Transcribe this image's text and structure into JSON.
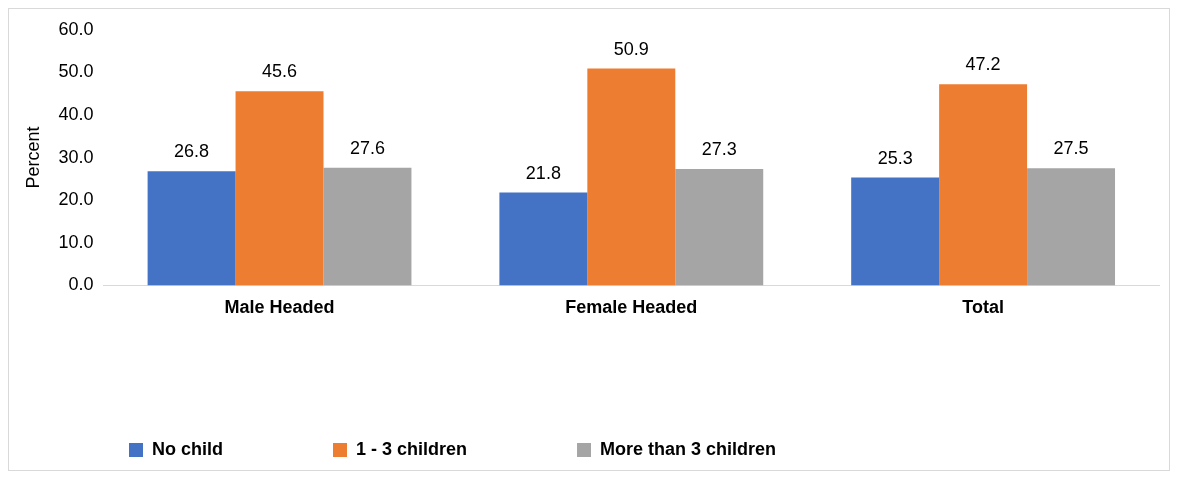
{
  "chart_data": {
    "type": "bar",
    "ylabel": "Percent",
    "categories": [
      "Male Headed",
      "Female Headed",
      "Total"
    ],
    "series": [
      {
        "name": "No child",
        "color": "#4472c4",
        "values": [
          26.8,
          21.8,
          25.3
        ]
      },
      {
        "name": "1 - 3 children",
        "color": "#ed7d31",
        "values": [
          45.6,
          50.9,
          47.2
        ]
      },
      {
        "name": "More than 3 children",
        "color": "#a5a5a5",
        "values": [
          27.6,
          27.3,
          27.5
        ]
      }
    ],
    "ylim": [
      0,
      60
    ],
    "yticks": [
      {
        "value": 0,
        "label": "0.0"
      },
      {
        "value": 10,
        "label": "10.0"
      },
      {
        "value": 20,
        "label": "20.0"
      },
      {
        "value": 30,
        "label": "30.0"
      },
      {
        "value": 40,
        "label": "40.0"
      },
      {
        "value": 50,
        "label": "50.0"
      },
      {
        "value": 60,
        "label": "60.0"
      }
    ],
    "grid": false,
    "legend": "bottom",
    "data_labels": true
  }
}
